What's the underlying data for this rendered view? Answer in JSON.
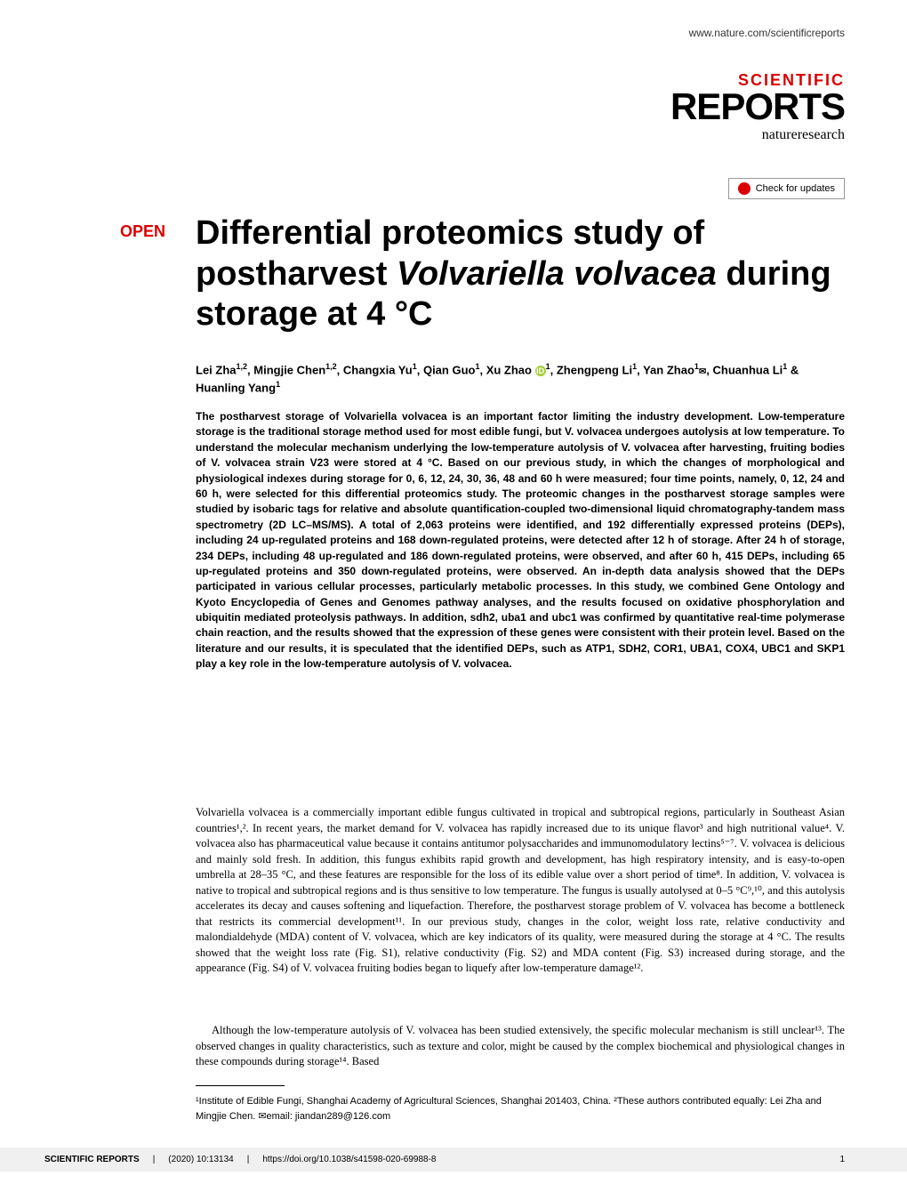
{
  "header": {
    "url": "www.nature.com/scientificreports",
    "journal_scientific": "SCIENTIFIC",
    "journal_reports": "REPORTS",
    "journal_nature": "natureresearch",
    "check_updates": "Check for updates",
    "open_label": "OPEN"
  },
  "title": {
    "line1": "Differential proteomics study of postharvest ",
    "italic": "Volvariella volvacea",
    "line2": " during storage at 4 °C"
  },
  "authors": {
    "full": "Lei Zha¹,², Mingjie Chen¹,², Changxia Yu¹, Qian Guo¹, Xu Zhao ⓘ¹, Zhengpeng Li¹, Yan Zhao¹✉, Chuanhua Li¹ & Huanling Yang¹",
    "a1": "Lei Zha",
    "a1_sup": "1,2",
    "a2": "Mingjie Chen",
    "a2_sup": "1,2",
    "a3": "Changxia Yu",
    "a3_sup": "1",
    "a4": "Qian Guo",
    "a4_sup": "1",
    "a5": "Xu Zhao",
    "a5_sup": "1",
    "a6": "Zhengpeng Li",
    "a6_sup": "1",
    "a7": "Yan Zhao",
    "a7_sup": "1",
    "a8": "Chuanhua Li",
    "a8_sup": "1",
    "a9": "Huanling Yang",
    "a9_sup": "1"
  },
  "abstract": {
    "text": "The postharvest storage of Volvariella volvacea is an important factor limiting the industry development. Low-temperature storage is the traditional storage method used for most edible fungi, but V. volvacea undergoes autolysis at low temperature. To understand the molecular mechanism underlying the low-temperature autolysis of V. volvacea after harvesting, fruiting bodies of V. volvacea strain V23 were stored at 4 °C. Based on our previous study, in which the changes of morphological and physiological indexes during storage for 0, 6, 12, 24, 30, 36, 48 and 60 h were measured; four time points, namely, 0, 12, 24 and 60 h, were selected for this differential proteomics study. The proteomic changes in the postharvest storage samples were studied by isobaric tags for relative and absolute quantification-coupled two-dimensional liquid chromatography-tandem mass spectrometry (2D LC–MS/MS). A total of 2,063 proteins were identified, and 192 differentially expressed proteins (DEPs), including 24 up-regulated proteins and 168 down-regulated proteins, were detected after 12 h of storage. After 24 h of storage, 234 DEPs, including 48 up-regulated and 186 down-regulated proteins, were observed, and after 60 h, 415 DEPs, including 65 up-regulated proteins and 350 down-regulated proteins, were observed. An in-depth data analysis showed that the DEPs participated in various cellular processes, particularly metabolic processes. In this study, we combined Gene Ontology and Kyoto Encyclopedia of Genes and Genomes pathway analyses, and the results focused on oxidative phosphorylation and ubiquitin mediated proteolysis pathways. In addition, sdh2, uba1 and ubc1 was confirmed by quantitative real-time polymerase chain reaction, and the results showed that the expression of these genes were consistent with their protein level. Based on the literature and our results, it is speculated that the identified DEPs, such as ATP1, SDH2, COR1, UBA1, COX4, UBC1 and SKP1 play a key role in the low-temperature autolysis of V. volvacea."
  },
  "body": {
    "p1": "Volvariella volvacea is a commercially important edible fungus cultivated in tropical and subtropical regions, particularly in Southeast Asian countries¹,². In recent years, the market demand for V. volvacea has rapidly increased due to its unique flavor³ and high nutritional value⁴. V. volvacea also has pharmaceutical value because it contains antitumor polysaccharides and immunomodulatory lectins⁵⁻⁷. V. volvacea is delicious and mainly sold fresh. In addition, this fungus exhibits rapid growth and development, has high respiratory intensity, and is easy-to-open umbrella at 28–35 °C, and these features are responsible for the loss of its edible value over a short period of time⁸. In addition, V. volvacea is native to tropical and subtropical regions and is thus sensitive to low temperature. The fungus is usually autolysed at 0–5 °C⁹,¹⁰, and this autolysis accelerates its decay and causes softening and liquefaction. Therefore, the postharvest storage problem of V. volvacea has become a bottleneck that restricts its commercial development¹¹. In our previous study, changes in the color, weight loss rate, relative conductivity and malondialdehyde (MDA) content of V. volvacea, which are key indicators of its quality, were measured during the storage at 4 °C. The results showed that the weight loss rate (Fig. S1), relative conductivity (Fig. S2) and MDA content (Fig. S3) increased during storage, and the appearance (Fig. S4) of V. volvacea fruiting bodies began to liquefy after low-temperature damage¹².",
    "p2": "Although the low-temperature autolysis of V. volvacea has been studied extensively, the specific molecular mechanism is still unclear¹³. The observed changes in quality characteristics, such as texture and color, might be caused by the complex biochemical and physiological changes in these compounds during storage¹⁴. Based"
  },
  "affiliations": {
    "text": "¹Institute of Edible Fungi, Shanghai Academy of Agricultural Sciences, Shanghai 201403, China. ²These authors contributed equally: Lei Zha and Mingjie Chen. ✉email: jiandan289@126.com"
  },
  "footer": {
    "journal": "SCIENTIFIC REPORTS",
    "year": "(2020) 10:13134",
    "doi": "https://doi.org/10.1038/s41598-020-69988-8",
    "page": "1"
  },
  "colors": {
    "red": "#dc0000",
    "link": "#0066cc",
    "orcid": "#a6ce39",
    "footer_bg": "#f0f0f0"
  }
}
